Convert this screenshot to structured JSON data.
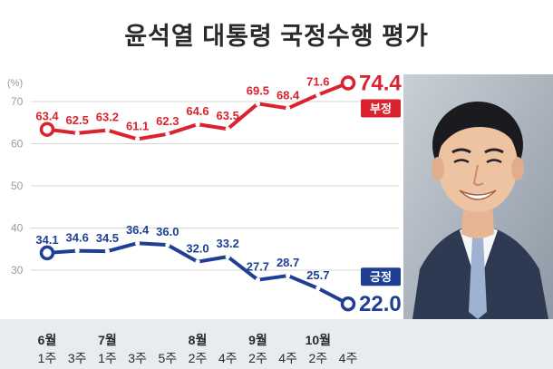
{
  "title": "윤석열 대통령 국정수행 평가",
  "colors": {
    "negative": "#d9232e",
    "positive": "#1f3f94",
    "grid": "#d6d6d6",
    "axis_text": "#9a9a9a",
    "background": "#ffffff",
    "label_band": "#e9ecef"
  },
  "photo": {
    "icon": "president-portrait"
  },
  "chart_data": {
    "type": "line",
    "title": "윤석열 대통령 국정수행 평가",
    "ylabel": "(%)",
    "yticks": [
      30,
      40,
      50,
      60,
      70
    ],
    "ylim": [
      22,
      80
    ],
    "grid": true,
    "x": [
      "6월 1주",
      "6월 3주",
      "7월 1주",
      "7월 3주",
      "7월 5주",
      "8월 2주",
      "8월 4주",
      "9월 2주",
      "9월 4주",
      "10월 2주",
      "10월 4주"
    ],
    "month_labels": [
      "6월",
      "",
      "7월",
      "",
      "",
      "8월",
      "",
      "9월",
      "",
      "10월",
      ""
    ],
    "week_labels": [
      "1주",
      "3주",
      "1주",
      "3주",
      "5주",
      "2주",
      "4주",
      "2주",
      "4주",
      "2주",
      "4주"
    ],
    "series": [
      {
        "name": "부정",
        "color": "#d9232e",
        "values": [
          63.4,
          62.5,
          63.2,
          61.1,
          62.3,
          64.6,
          63.5,
          69.5,
          68.4,
          71.6,
          74.4
        ],
        "labels": [
          "63.4",
          "62.5",
          "63.2",
          "61.1",
          "62.3",
          "64.6",
          "63.5",
          "69.5",
          "68.4",
          "71.6",
          "74.4"
        ]
      },
      {
        "name": "긍정",
        "color": "#1f3f94",
        "values": [
          34.1,
          34.6,
          34.5,
          36.4,
          36.0,
          32.0,
          33.2,
          27.7,
          28.7,
          25.7,
          22.0
        ],
        "labels": [
          "34.1",
          "34.6",
          "34.5",
          "36.4",
          "36.0",
          "32.0",
          "33.2",
          "27.7",
          "28.7",
          "25.7",
          "22.0"
        ]
      }
    ]
  }
}
